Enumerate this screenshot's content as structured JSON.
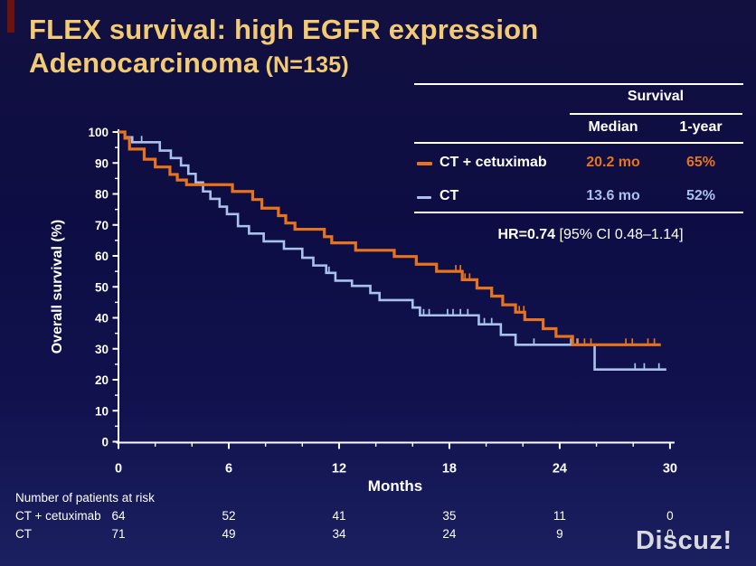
{
  "slide": {
    "title_line1": "FLEX survival: high EGFR expression",
    "title_line2": "Adenocarcinoma",
    "title_line2_suffix": " (N=135)",
    "watermark": "Discuz!"
  },
  "colors": {
    "background_navy": "#0E0E46",
    "title_gold": "#F2CB74",
    "text_white": "#FFFFFF",
    "ct_cetuximab_orange": "#E8731D",
    "ct_blue": "#A9C2EC",
    "watermark_gray": "#D9DADF",
    "edge_artifact_red": "#6B1310"
  },
  "stats_table": {
    "header": "Survival",
    "col_median": "Median",
    "col_1year": "1-year",
    "rows": [
      {
        "label": "CT + cetuximab",
        "median": "20.2 mo",
        "one_year": "65%"
      },
      {
        "label": "CT",
        "median": "13.6 mo",
        "one_year": "52%"
      }
    ],
    "hr_bold": "HR=0.74",
    "hr_rest": " [95% CI 0.48–1.14]"
  },
  "chart_data": {
    "type": "line",
    "subtype": "kaplan-meier-step",
    "title": "",
    "xlabel": "Months",
    "ylabel": "Overall survival (%)",
    "xlim": [
      0,
      30
    ],
    "ylim": [
      0,
      100
    ],
    "x_ticks": [
      0,
      6,
      12,
      18,
      24,
      30
    ],
    "y_ticks": [
      0,
      10,
      20,
      30,
      40,
      50,
      60,
      70,
      80,
      90,
      100
    ],
    "x_minor_step": 2,
    "y_minor_step": 5,
    "grid": false,
    "legend_position": "table-top-right",
    "series": [
      {
        "name": "CT",
        "color": "#A9C2EC",
        "width": 2.6,
        "steps": [
          [
            0,
            100
          ],
          [
            0.35,
            98.3
          ],
          [
            0.75,
            96.7
          ],
          [
            2.25,
            94
          ],
          [
            2.85,
            91.6
          ],
          [
            3.4,
            89.2
          ],
          [
            3.8,
            86.5
          ],
          [
            4.2,
            83.7
          ],
          [
            4.6,
            80.8
          ],
          [
            5.0,
            78.4
          ],
          [
            5.5,
            75.9
          ],
          [
            5.9,
            73.5
          ],
          [
            6.5,
            69.6
          ],
          [
            7.1,
            67.2
          ],
          [
            7.9,
            64.7
          ],
          [
            9.0,
            62.3
          ],
          [
            10.0,
            59.4
          ],
          [
            10.6,
            56.9
          ],
          [
            11.3,
            54.5
          ],
          [
            11.8,
            52
          ],
          [
            12.7,
            50.3
          ],
          [
            13.7,
            48
          ],
          [
            14.2,
            45.7
          ],
          [
            16.0,
            43.3
          ],
          [
            16.4,
            40.8
          ],
          [
            19.6,
            37.9
          ],
          [
            20.8,
            34.5
          ],
          [
            21.6,
            31.3
          ],
          [
            25.9,
            23.3
          ],
          [
            29.8,
            23.3
          ]
        ],
        "censors": [
          [
            1.26,
            96.7
          ],
          [
            11.45,
            54.5
          ],
          [
            16.6,
            40.8
          ],
          [
            16.9,
            40.8
          ],
          [
            17.9,
            40.8
          ],
          [
            18.2,
            40.8
          ],
          [
            18.6,
            40.8
          ],
          [
            19.0,
            40.8
          ],
          [
            19.9,
            37.9
          ],
          [
            20.3,
            37.9
          ],
          [
            22.6,
            31.3
          ],
          [
            24.6,
            31.3
          ],
          [
            24.95,
            31.3
          ],
          [
            28.1,
            23.3
          ],
          [
            28.6,
            23.3
          ],
          [
            29.4,
            23.3
          ]
        ]
      },
      {
        "name": "CT + cetuximab",
        "color": "#E8731D",
        "width": 3.2,
        "steps": [
          [
            0,
            100
          ],
          [
            0.35,
            98
          ],
          [
            0.6,
            94.5
          ],
          [
            1.4,
            91.2
          ],
          [
            2.0,
            88.7
          ],
          [
            2.8,
            86.3
          ],
          [
            3.2,
            84.5
          ],
          [
            3.7,
            83
          ],
          [
            6.2,
            80.8
          ],
          [
            7.3,
            78.2
          ],
          [
            7.8,
            75.4
          ],
          [
            8.7,
            73
          ],
          [
            9.1,
            70.6
          ],
          [
            9.6,
            68.6
          ],
          [
            11.2,
            66.2
          ],
          [
            11.6,
            64.2
          ],
          [
            12.9,
            61.8
          ],
          [
            15.0,
            59.8
          ],
          [
            16.2,
            57.3
          ],
          [
            17.3,
            55
          ],
          [
            18.7,
            52.3
          ],
          [
            19.5,
            49.6
          ],
          [
            20.3,
            47
          ],
          [
            20.9,
            44.2
          ],
          [
            21.6,
            41.8
          ],
          [
            22.1,
            39.4
          ],
          [
            23.1,
            36.5
          ],
          [
            23.8,
            34
          ],
          [
            24.7,
            31.3
          ],
          [
            29.5,
            31.3
          ]
        ],
        "censors": [
          [
            18.35,
            55
          ],
          [
            18.6,
            55
          ],
          [
            18.85,
            52.3
          ],
          [
            19.1,
            52.3
          ],
          [
            21.8,
            41.8
          ],
          [
            22.05,
            41.8
          ],
          [
            25.0,
            31.3
          ],
          [
            25.35,
            31.3
          ],
          [
            25.7,
            31.3
          ],
          [
            27.6,
            31.3
          ],
          [
            27.95,
            31.3
          ],
          [
            28.8,
            31.3
          ],
          [
            29.15,
            31.3
          ]
        ]
      }
    ]
  },
  "risk_table": {
    "caption": "Number of patients at risk",
    "months": [
      0,
      6,
      12,
      18,
      24,
      30
    ],
    "rows": [
      {
        "label": "CT + cetuximab",
        "values": [
          "64",
          "52",
          "41",
          "35",
          "11",
          "0"
        ]
      },
      {
        "label": "CT",
        "values": [
          "71",
          "49",
          "34",
          "24",
          "9",
          "0"
        ]
      }
    ]
  }
}
